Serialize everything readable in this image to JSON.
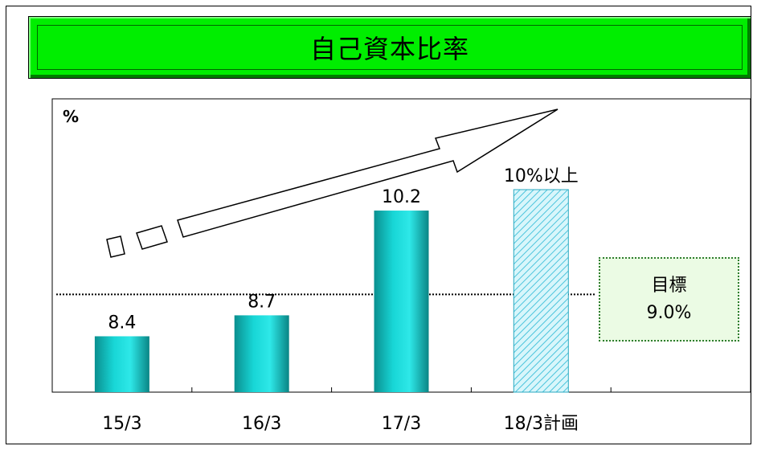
{
  "chart_data": {
    "type": "bar",
    "title": "自己資本比率",
    "unit": "%",
    "categories": [
      "15/3",
      "16/3",
      "17/3",
      "18/3計画"
    ],
    "values": [
      8.4,
      8.7,
      10.2,
      10.5
    ],
    "value_labels": [
      "8.4",
      "8.7",
      "10.2",
      "10%以上"
    ],
    "planned": [
      false,
      false,
      false,
      true
    ],
    "ylim": [
      7.6,
      11.8
    ],
    "target": {
      "label": "目標",
      "value": 9.0,
      "value_text": "9.0%"
    },
    "colors": {
      "bar": "#14c4c4",
      "planned_bar": "#b8ecf5",
      "title_bg": "#00ee00"
    },
    "grid": false,
    "legend": "none"
  }
}
